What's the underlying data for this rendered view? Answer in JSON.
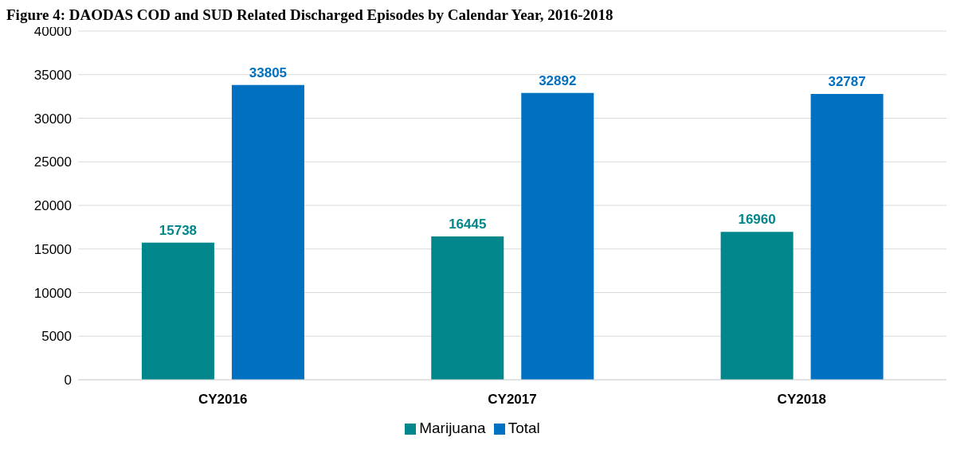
{
  "chart_data": {
    "type": "bar",
    "title": "Figure 4:  DAODAS COD and SUD Related Discharged Episodes by Calendar Year, 2016-2018",
    "categories": [
      "CY2016",
      "CY2017",
      "CY2018"
    ],
    "series": [
      {
        "name": "Marijuana",
        "color": "#00868b",
        "values": [
          15738,
          16445,
          16960
        ]
      },
      {
        "name": "Total",
        "color": "#0070c0",
        "values": [
          33805,
          32892,
          32787
        ]
      }
    ],
    "ylim": [
      0,
      40000
    ],
    "yticks": [
      0,
      5000,
      10000,
      15000,
      20000,
      25000,
      30000,
      35000,
      40000
    ],
    "grid": "y",
    "legend": "bottom",
    "data_labels": true
  }
}
